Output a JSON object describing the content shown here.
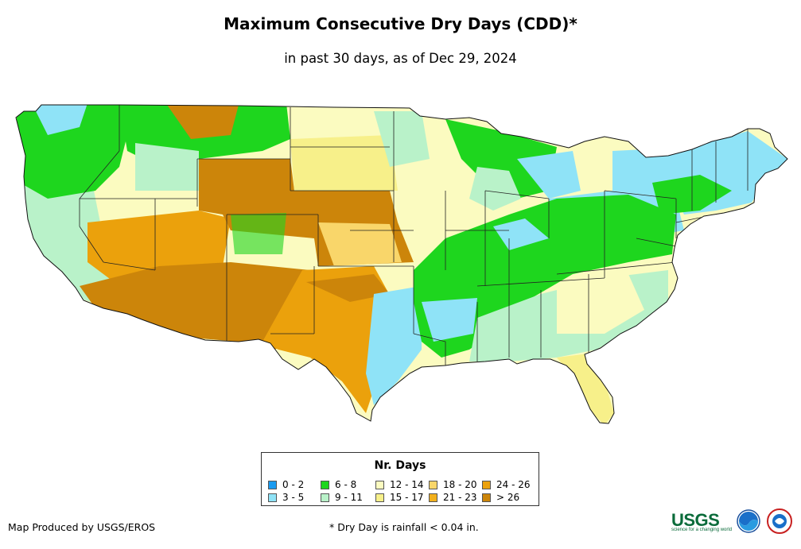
{
  "title": "Maximum Consecutive Dry Days (CDD)*",
  "subtitle": "in past 30 days, as of Dec 29, 2024",
  "legend": {
    "title": "Nr. Days",
    "items": [
      {
        "label": "0 - 2",
        "color": "#1a9bf0"
      },
      {
        "label": "3 - 5",
        "color": "#8fe3f7"
      },
      {
        "label": "6 - 8",
        "color": "#1ed61e"
      },
      {
        "label": "9 - 11",
        "color": "#b9f2c9"
      },
      {
        "label": "12 - 14",
        "color": "#fbfbc0"
      },
      {
        "label": "15 - 17",
        "color": "#f7f08a"
      },
      {
        "label": "18 - 20",
        "color": "#f9d66a"
      },
      {
        "label": "21 - 23",
        "color": "#f2b01c"
      },
      {
        "label": "24 - 26",
        "color": "#eba10c"
      },
      {
        "label": "> 26",
        "color": "#cc850a"
      }
    ]
  },
  "credit": "Map Produced by USGS/EROS",
  "footnote": "* Dry Day is rainfall < 0.04 in.",
  "logos": {
    "usgs": "USGS",
    "usgs_tagline": "science for a changing world"
  }
}
